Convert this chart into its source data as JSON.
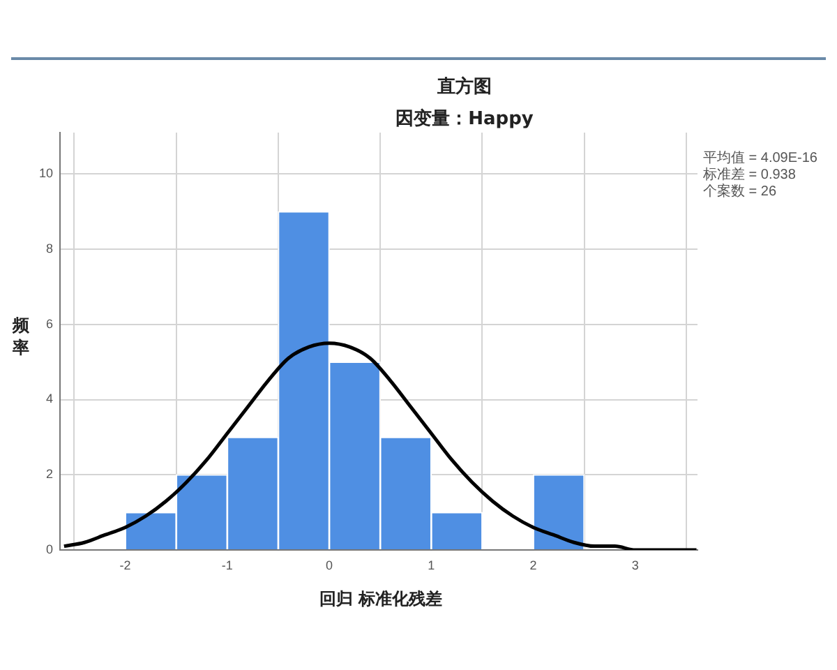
{
  "chart_data": {
    "type": "histogram",
    "title": "直方图",
    "subtitle": "因变量：Happy",
    "xlabel": "回归 标准化残差",
    "ylabel": "频率",
    "annotations": [
      "平均值 = 4.09E-16",
      "标准差 = 0.938",
      "个案数 = 26"
    ],
    "bins": [
      -2,
      -1.5,
      -1,
      -0.5,
      0,
      0.5,
      1,
      1.5,
      2,
      2.5
    ],
    "values": [
      1,
      2,
      3,
      9,
      5,
      3,
      1,
      0,
      2
    ],
    "color": "#4f8fe3",
    "series": [
      {
        "type": "line",
        "color": "#000000",
        "x": [
          -2.6,
          -2.4,
          -2.2,
          -2,
          -1.8,
          -1.6,
          -1.4,
          -1.2,
          -1,
          -0.8,
          -0.6,
          -0.4,
          -0.2,
          0,
          0.2,
          0.4,
          0.6,
          0.8,
          1,
          1.2,
          1.4,
          1.6,
          1.8,
          2,
          2.2,
          2.4,
          2.6,
          2.8,
          3,
          3.2,
          3.4,
          3.6
        ],
        "values": [
          0.1,
          0.2,
          0.4,
          0.6,
          0.9,
          1.3,
          1.8,
          2.4,
          3.1,
          3.8,
          4.5,
          5.1,
          5.4,
          5.5,
          5.4,
          5.1,
          4.5,
          3.8,
          3.1,
          2.4,
          1.8,
          1.3,
          0.9,
          0.6,
          0.4,
          0.2,
          0.1,
          0.1,
          0,
          0,
          0,
          0
        ]
      }
    ],
    "xlim": [
      -2.64,
      3.61
    ],
    "xticks": [
      -2,
      -1,
      0,
      1,
      2,
      3
    ],
    "ylim": [
      0,
      11.1
    ],
    "yticks": [
      0,
      2,
      4,
      6,
      8,
      10
    ],
    "grid": true
  }
}
